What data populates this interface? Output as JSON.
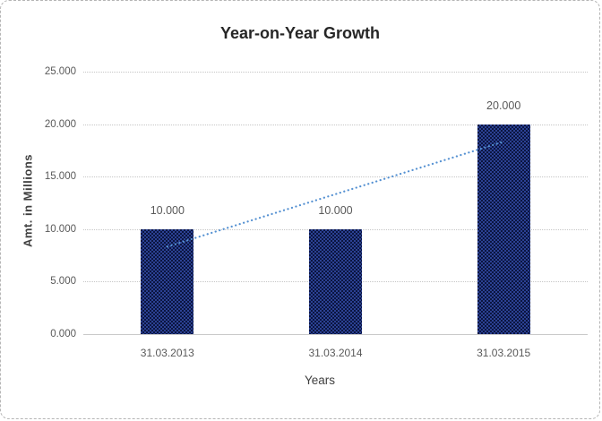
{
  "chart_data": {
    "type": "bar",
    "title": "Year-on-Year Growth",
    "xlabel": "Years",
    "ylabel": "Amt. in Millions",
    "categories": [
      "31.03.2013",
      "31.03.2014",
      "31.03.2015"
    ],
    "values": [
      10,
      10,
      20
    ],
    "data_labels": [
      "10.000",
      "10.000",
      "20.000"
    ],
    "ylim": [
      0,
      25
    ],
    "ytick_step": 5,
    "ytick_labels": [
      "0.000",
      "5.000",
      "10.000",
      "15.000",
      "20.000",
      "25.000"
    ],
    "grid": true,
    "legend_position": "none",
    "trendline": {
      "type": "linear",
      "style": "dotted",
      "endpoint_values": [
        8.333,
        18.333
      ],
      "color": "#5591d2"
    },
    "colors": {
      "bar_dark": "#0b1540",
      "bar_check": "#2b4193",
      "gridline": "#c6c6c6",
      "axis_line": "#c9c9c9",
      "title_color": "#262626",
      "tick_color": "#595959",
      "axis_title_color": "#404040"
    }
  }
}
